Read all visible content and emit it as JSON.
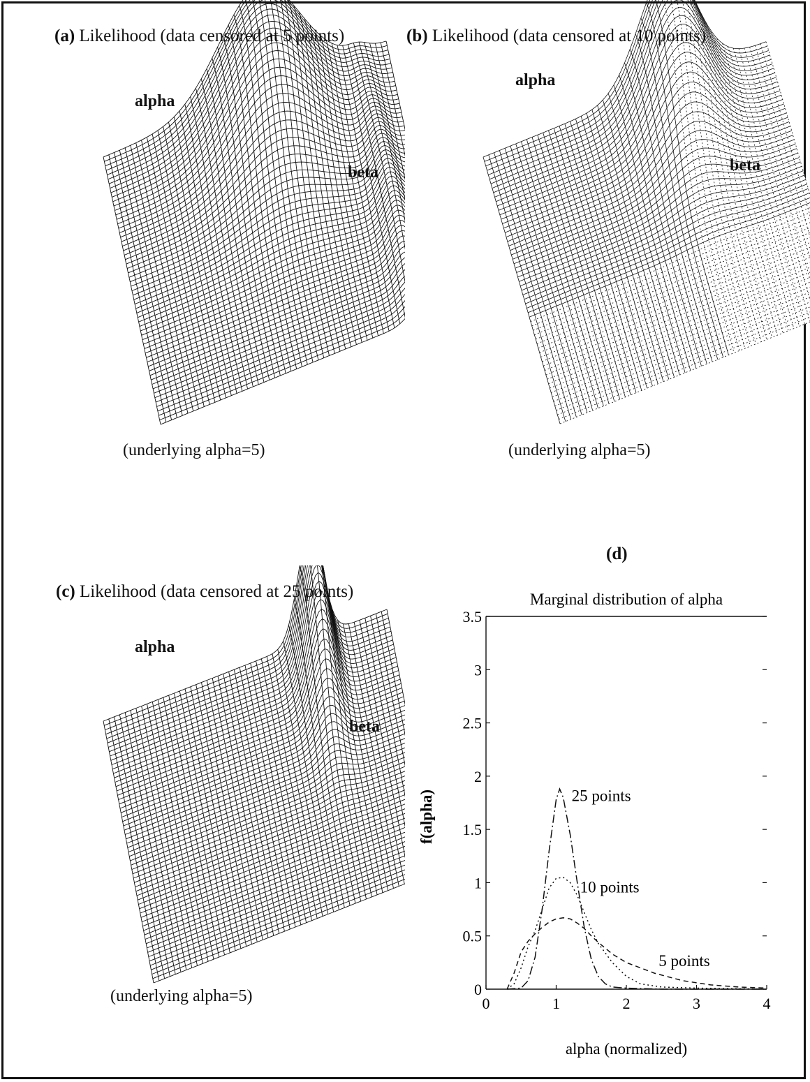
{
  "panels": [
    {
      "id": "a",
      "title_letter": "(a)",
      "title_text": "Likelihood (data censored at 5 points)",
      "alpha_label": "alpha",
      "beta_label": "beta",
      "note": "(underlying alpha=5)"
    },
    {
      "id": "b",
      "title_letter": "(b)",
      "title_text": "Likelihood (data censored at 10 points)",
      "alpha_label": "alpha",
      "beta_label": "beta",
      "note": "(underlying alpha=5)"
    },
    {
      "id": "c",
      "title_letter": "(c)",
      "title_text": "Likelihood (data censored at 25 points)",
      "alpha_label": "alpha",
      "beta_label": "beta",
      "note": "(underlying alpha=5)"
    }
  ],
  "panel_d": {
    "letter": "(d)"
  },
  "chart_data": {
    "type": "line",
    "title": "Marginal distribution of alpha",
    "xlabel": "alpha (normalized)",
    "ylabel": "f(alpha)",
    "xlim": [
      0,
      4
    ],
    "ylim": [
      0,
      3.5
    ],
    "x_ticks": [
      "0",
      "1",
      "2",
      "3",
      "4"
    ],
    "y_ticks": [
      "0",
      "0.5",
      "1",
      "1.5",
      "2",
      "2.5",
      "3",
      "3.5"
    ],
    "grid": false,
    "series": [
      {
        "name": "25 points",
        "style": "dash-dot",
        "x": [
          0.3,
          0.5,
          0.6,
          0.7,
          0.8,
          0.9,
          1.0,
          1.05,
          1.1,
          1.2,
          1.3,
          1.4,
          1.5,
          1.6,
          1.7,
          1.8,
          2.0,
          2.5,
          4.0
        ],
        "y": [
          0.0,
          0.01,
          0.08,
          0.3,
          0.75,
          1.3,
          1.78,
          1.88,
          1.8,
          1.45,
          1.0,
          0.58,
          0.28,
          0.12,
          0.05,
          0.02,
          0.01,
          0.0,
          0.0
        ]
      },
      {
        "name": "10 points",
        "style": "dotted",
        "x": [
          0.3,
          0.4,
          0.5,
          0.6,
          0.7,
          0.8,
          0.9,
          1.0,
          1.1,
          1.2,
          1.3,
          1.4,
          1.5,
          1.6,
          1.8,
          2.0,
          2.2,
          2.5,
          3.0,
          4.0
        ],
        "y": [
          0.0,
          0.05,
          0.2,
          0.4,
          0.55,
          0.75,
          0.95,
          1.04,
          1.05,
          1.0,
          0.88,
          0.72,
          0.56,
          0.43,
          0.25,
          0.12,
          0.05,
          0.02,
          0.01,
          0.0
        ]
      },
      {
        "name": "5 points",
        "style": "dashed",
        "x": [
          0.3,
          0.4,
          0.5,
          0.6,
          0.7,
          0.8,
          0.9,
          1.0,
          1.1,
          1.2,
          1.3,
          1.4,
          1.5,
          1.6,
          1.8,
          2.0,
          2.4,
          2.8,
          3.2,
          3.6,
          4.0
        ],
        "y": [
          0.0,
          0.15,
          0.35,
          0.45,
          0.52,
          0.58,
          0.63,
          0.66,
          0.67,
          0.66,
          0.62,
          0.57,
          0.5,
          0.44,
          0.33,
          0.25,
          0.15,
          0.08,
          0.04,
          0.02,
          0.01
        ]
      }
    ],
    "annotations": [
      {
        "text": "25 points",
        "x": 1.22,
        "y": 1.82
      },
      {
        "text": "10 points",
        "x": 1.34,
        "y": 0.96
      },
      {
        "text": "5 points",
        "x": 2.46,
        "y": 0.27
      }
    ]
  }
}
